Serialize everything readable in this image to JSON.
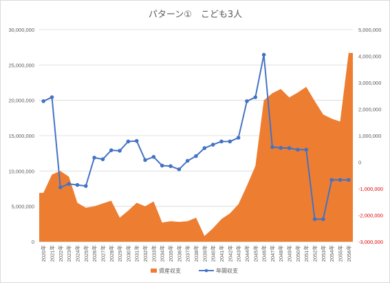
{
  "chart_data": {
    "type": "area+line",
    "title": "パターン①　こども3人",
    "xlabel": "",
    "ylabel": "",
    "categories": [
      "2020年",
      "2021年",
      "2022年",
      "2023年",
      "2024年",
      "2025年",
      "2026年",
      "2027年",
      "2028年",
      "2029年",
      "2030年",
      "2031年",
      "2032年",
      "2033年",
      "2034年",
      "2035年",
      "2036年",
      "2037年",
      "2038年",
      "2039年",
      "2040年",
      "2041年",
      "2042年",
      "2043年",
      "2044年",
      "2045年",
      "2046年",
      "2047年",
      "2048年",
      "2049年",
      "2050年",
      "2051年",
      "2052年",
      "2053年",
      "2054年",
      "2055年",
      "2056年"
    ],
    "left_axis": {
      "range": [
        0,
        30000000
      ],
      "ticks": [
        "0",
        "5,000,000",
        "10,000,000",
        "15,000,000",
        "20,000,000",
        "25,000,000",
        "30,000,000"
      ]
    },
    "right_axis": {
      "range": [
        -3000000,
        5000000
      ],
      "ticks": [
        "-3,000,000",
        "-2,000,000",
        "-1,000,000",
        "0",
        "1,000,000",
        "2,000,000",
        "3,000,000",
        "4,000,000",
        "5,000,000"
      ]
    },
    "series": [
      {
        "name": "資産収支",
        "type": "area",
        "axis": "left",
        "color": "#ED7D31",
        "values": [
          6900000,
          9500000,
          10000000,
          9200000,
          5500000,
          4800000,
          5000000,
          5400000,
          5800000,
          3400000,
          4400000,
          5500000,
          5000000,
          5700000,
          2700000,
          2900000,
          2800000,
          2900000,
          3400000,
          800000,
          1900000,
          3200000,
          4000000,
          5300000,
          7900000,
          10700000,
          20000000,
          21000000,
          21600000,
          20400000,
          21100000,
          21900000,
          19900000,
          18000000,
          17400000,
          17000000,
          26700000
        ]
      },
      {
        "name": "年間収支",
        "type": "line",
        "axis": "right",
        "color": "#4472C4",
        "values": [
          2300000,
          2450000,
          -950000,
          -820000,
          -860000,
          -900000,
          170000,
          110000,
          450000,
          430000,
          780000,
          800000,
          80000,
          200000,
          -130000,
          -150000,
          -270000,
          50000,
          230000,
          530000,
          660000,
          780000,
          780000,
          920000,
          2300000,
          2450000,
          4050000,
          570000,
          540000,
          530000,
          470000,
          470000,
          -2150000,
          -2150000,
          -670000,
          -670000,
          -670000
        ]
      }
    ],
    "legend": {
      "position": "bottom"
    },
    "grid": {
      "horizontal": true,
      "vertical": false
    },
    "negative_tick_color": "#e00000"
  }
}
